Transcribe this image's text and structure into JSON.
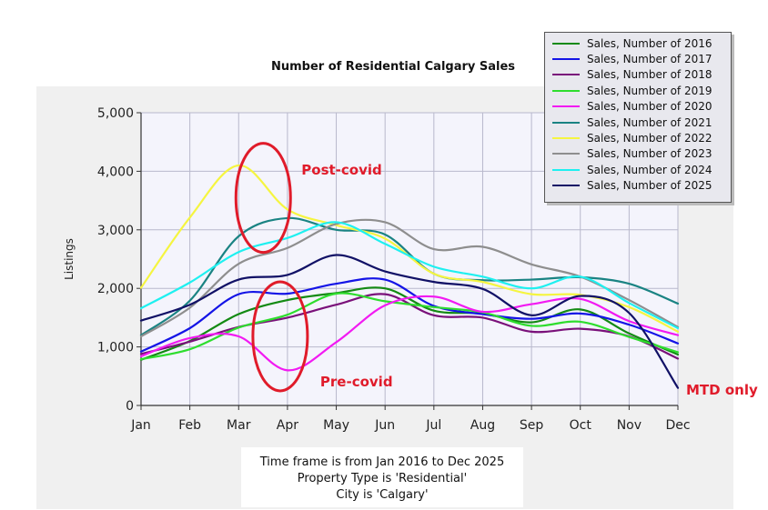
{
  "chart_data": {
    "type": "line",
    "title": "Number of Residential Calgary Sales",
    "xlabel": "",
    "ylabel": "Listings",
    "ylim": [
      0,
      5000
    ],
    "yticks": [
      0,
      1000,
      2000,
      3000,
      4000,
      5000
    ],
    "ytick_labels": [
      "0",
      "1,000",
      "2,000",
      "3,000",
      "4,000",
      "5,000"
    ],
    "grid": true,
    "legend_position": "top-right",
    "categories": [
      "Jan",
      "Feb",
      "Mar",
      "Apr",
      "May",
      "Jun",
      "Jul",
      "Aug",
      "Sep",
      "Oct",
      "Nov",
      "Dec"
    ],
    "series": [
      {
        "name": "Sales, Number of 2016",
        "color": "#138a13",
        "values": [
          780,
          1100,
          1560,
          1800,
          1920,
          2000,
          1620,
          1570,
          1420,
          1640,
          1230,
          870
        ]
      },
      {
        "name": "Sales, Number of 2017",
        "color": "#1414e6",
        "values": [
          920,
          1320,
          1900,
          1910,
          2080,
          2150,
          1700,
          1560,
          1480,
          1570,
          1380,
          1060
        ]
      },
      {
        "name": "Sales, Number of 2018",
        "color": "#7a117a",
        "values": [
          880,
          1090,
          1340,
          1500,
          1720,
          1900,
          1540,
          1500,
          1260,
          1310,
          1180,
          800
        ]
      },
      {
        "name": "Sales, Number of 2019",
        "color": "#2edd2e",
        "values": [
          790,
          960,
          1330,
          1550,
          1910,
          1780,
          1680,
          1590,
          1360,
          1430,
          1170,
          910
        ]
      },
      {
        "name": "Sales, Number of 2020",
        "color": "#f21af2",
        "values": [
          840,
          1150,
          1180,
          600,
          1080,
          1710,
          1860,
          1600,
          1730,
          1820,
          1440,
          1200
        ]
      },
      {
        "name": "Sales, Number of 2021",
        "color": "#1a8383",
        "values": [
          1200,
          1790,
          2890,
          3200,
          3000,
          2920,
          2250,
          2140,
          2150,
          2190,
          2080,
          1740
        ]
      },
      {
        "name": "Sales, Number of 2022",
        "color": "#f5f540",
        "values": [
          2010,
          3210,
          4100,
          3350,
          3080,
          2850,
          2250,
          2110,
          1900,
          1890,
          1680,
          1260
        ]
      },
      {
        "name": "Sales, Number of 2023",
        "color": "#8e8e8e",
        "values": [
          1180,
          1670,
          2420,
          2690,
          3100,
          3130,
          2670,
          2710,
          2410,
          2200,
          1800,
          1340
        ]
      },
      {
        "name": "Sales, Number of 2024",
        "color": "#1ef0f0",
        "values": [
          1660,
          2100,
          2620,
          2860,
          3130,
          2760,
          2370,
          2200,
          2000,
          2200,
          1750,
          1320
        ]
      },
      {
        "name": "Sales, Number of 2025",
        "color": "#111166",
        "values": [
          1450,
          1720,
          2150,
          2230,
          2570,
          2290,
          2110,
          1990,
          1540,
          1870,
          1580,
          300
        ]
      }
    ],
    "annotations": [
      {
        "text": "Post-covid",
        "category": "Mar",
        "value": 3500,
        "shape": "ellipse"
      },
      {
        "text": "Pre-covid",
        "category": "Apr",
        "value": 1150,
        "shape": "ellipse"
      },
      {
        "text": "MTD only",
        "category": "Dec",
        "value": 300
      }
    ],
    "notes": [
      "Time frame is from Jan 2016 to Dec 2025",
      "Property Type is 'Residential'",
      "City is 'Calgary'"
    ]
  }
}
